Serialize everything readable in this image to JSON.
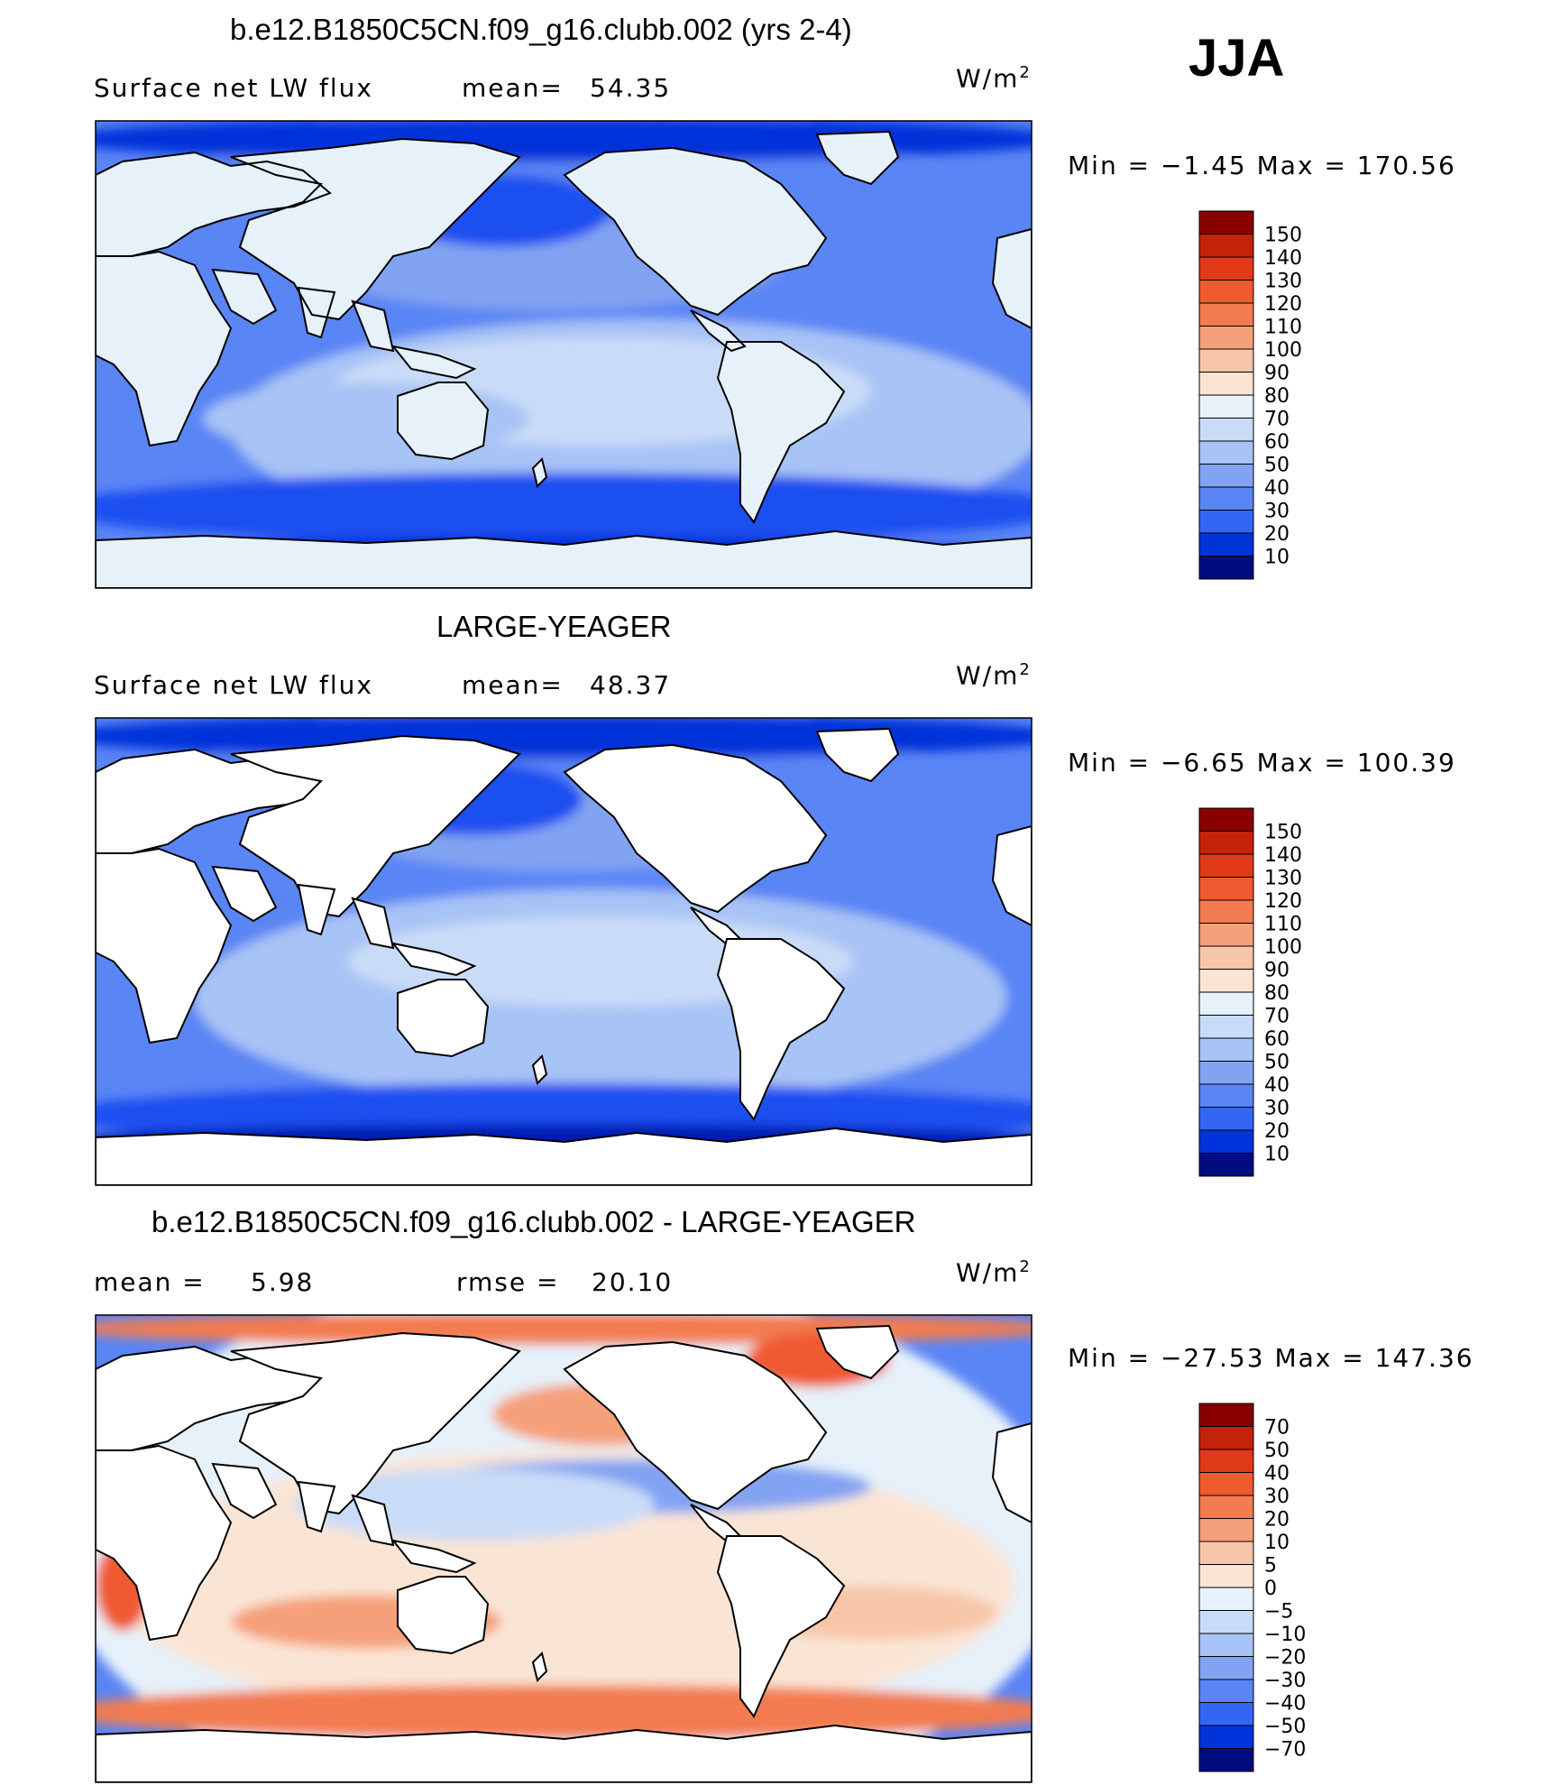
{
  "season": "JJA",
  "colors": {
    "full": [
      "#000c80",
      "#001ab3",
      "#0033d9",
      "#1a4ff0",
      "#3366f5",
      "#5a85f5",
      "#82a3f2",
      "#a8c3f5",
      "#c9dcf7",
      "#e6f1fa",
      "#fae5d5",
      "#f7c6a8",
      "#f5a07a",
      "#f27b50",
      "#f05a30",
      "#e03a18",
      "#c4220a",
      "#8a0000"
    ],
    "diff": [
      "#000c80",
      "#001ab3",
      "#0033d9",
      "#1a4ff0",
      "#3366f5",
      "#5a85f5",
      "#82a3f2",
      "#a8c3f5",
      "#c9dcf7",
      "#e6f1fa",
      "#fae5d5",
      "#f7c6a8",
      "#f5a07a",
      "#f27b50",
      "#f05a30",
      "#e03a18",
      "#c4220a",
      "#8a0000"
    ]
  },
  "panels": [
    {
      "title": "b.e12.B1850C5CN.f09_g16.clubb.002 (yrs 2-4)",
      "left_label": "Surface net LW flux",
      "mid_label": "mean=",
      "mid_value": "54.35",
      "units": "W/m",
      "units_sup": "2",
      "minmax": "Min =   −1.45 Max = 170.56",
      "legend_levels": [
        "150",
        "140",
        "130",
        "120",
        "110",
        "100",
        "90",
        "80",
        "70",
        "60",
        "50",
        "40",
        "30",
        "20",
        "10"
      ],
      "palette": "full",
      "land_masked": false
    },
    {
      "title": "LARGE-YEAGER",
      "left_label": "Surface net LW flux",
      "mid_label": "mean=",
      "mid_value": "48.37",
      "units": "W/m",
      "units_sup": "2",
      "minmax": "Min =   −6.65 Max = 100.39",
      "legend_levels": [
        "150",
        "140",
        "130",
        "120",
        "110",
        "100",
        "90",
        "80",
        "70",
        "60",
        "50",
        "40",
        "30",
        "20",
        "10"
      ],
      "palette": "full",
      "land_masked": true
    },
    {
      "title": "b.e12.B1850C5CN.f09_g16.clubb.002 - LARGE-YEAGER",
      "left_label": "mean =",
      "left_value": "5.98",
      "mid_label": "rmse =",
      "mid_value": "20.10",
      "units": "W/m",
      "units_sup": "2",
      "minmax": "Min = −27.53 Max = 147.36",
      "legend_levels": [
        "70",
        "50",
        "40",
        "30",
        "20",
        "10",
        "5",
        "0",
        "−5",
        "−10",
        "−20",
        "−30",
        "−40",
        "−50",
        "−70"
      ],
      "palette": "diff",
      "land_masked": true
    }
  ]
}
